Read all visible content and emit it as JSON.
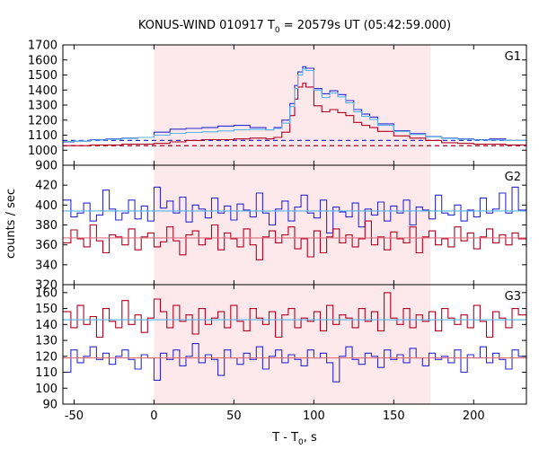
{
  "title": {
    "prefix": "KONUS-WIND 010917 T",
    "sub": "0",
    "suffix": " = 20579s UT (05:42:59.000)"
  },
  "xlabel": {
    "prefix": "T - T",
    "sub": "0",
    "suffix": ", s"
  },
  "ylabel": "counts / sec",
  "chart_data": {
    "type": "line",
    "style": "step",
    "xlim": [
      -57,
      233
    ],
    "xticks": [
      -50,
      0,
      50,
      100,
      150,
      200
    ],
    "shaded_interval": [
      0,
      173
    ],
    "colors": {
      "blue": "#2b2bd4",
      "red": "#b00020",
      "cyan": "#5ab4e6",
      "pink": "#e07080",
      "shade": "#fde8ec"
    },
    "panels": [
      {
        "name": "G1",
        "ylim": [
          900,
          1700
        ],
        "yticks": [
          900,
          1000,
          1100,
          1200,
          1300,
          1400,
          1500,
          1600,
          1700
        ],
        "background_levels": [
          1065,
          1030
        ],
        "series": [
          {
            "color": "blue",
            "x": [
              -57,
              -50,
              -40,
              -30,
              -20,
              -10,
              0,
              10,
              20,
              30,
              40,
              50,
              60,
              70,
              75,
              80,
              85,
              88,
              90,
              93,
              95,
              100,
              105,
              110,
              115,
              120,
              125,
              130,
              135,
              140,
              150,
              160,
              170,
              180,
              190,
              200,
              210,
              220,
              233
            ],
            "y": [
              1055,
              1060,
              1070,
              1075,
              1080,
              1085,
              1120,
              1140,
              1145,
              1150,
              1160,
              1165,
              1150,
              1135,
              1150,
              1200,
              1310,
              1430,
              1520,
              1555,
              1545,
              1410,
              1375,
              1395,
              1370,
              1330,
              1270,
              1240,
              1220,
              1175,
              1130,
              1110,
              1090,
              1080,
              1075,
              1070,
              1075,
              1065,
              1060
            ]
          },
          {
            "color": "red",
            "x": [
              -57,
              -50,
              -40,
              -30,
              -20,
              -10,
              0,
              10,
              20,
              30,
              40,
              50,
              60,
              70,
              75,
              80,
              85,
              88,
              90,
              93,
              95,
              100,
              105,
              110,
              115,
              120,
              125,
              130,
              135,
              140,
              150,
              160,
              170,
              180,
              190,
              200,
              210,
              220,
              233
            ],
            "y": [
              1030,
              1030,
              1035,
              1035,
              1040,
              1040,
              1045,
              1055,
              1065,
              1070,
              1070,
              1075,
              1080,
              1075,
              1085,
              1120,
              1230,
              1340,
              1420,
              1445,
              1420,
              1295,
              1255,
              1270,
              1250,
              1230,
              1185,
              1165,
              1150,
              1125,
              1095,
              1080,
              1065,
              1050,
              1045,
              1040,
              1040,
              1035,
              1035
            ]
          },
          {
            "color": "cyan",
            "x": [
              -57,
              -50,
              -40,
              -30,
              -20,
              -10,
              0,
              10,
              20,
              30,
              40,
              50,
              60,
              70,
              75,
              80,
              85,
              88,
              90,
              93,
              95,
              100,
              105,
              110,
              115,
              120,
              125,
              130,
              135,
              140,
              150,
              160,
              170,
              180,
              190,
              200,
              210,
              220,
              233
            ],
            "y": [
              1058,
              1062,
              1068,
              1072,
              1078,
              1085,
              1100,
              1112,
              1118,
              1122,
              1128,
              1135,
              1138,
              1135,
              1145,
              1180,
              1290,
              1410,
              1500,
              1540,
              1530,
              1400,
              1350,
              1380,
              1355,
              1315,
              1255,
              1225,
              1205,
              1165,
              1125,
              1105,
              1088,
              1078,
              1072,
              1068,
              1068,
              1065,
              1062
            ]
          }
        ]
      },
      {
        "name": "G2",
        "ylim": [
          320,
          440
        ],
        "yticks": [
          320,
          340,
          360,
          380,
          400,
          420
        ],
        "fit_levels": [
          394,
          367
        ],
        "series": [
          {
            "color": "blue",
            "x": [
              -57,
              -52,
              -48,
              -44,
              -40,
              -36,
              -32,
              -28,
              -24,
              -20,
              -16,
              -12,
              -8,
              -4,
              0,
              4,
              8,
              12,
              16,
              20,
              24,
              28,
              32,
              36,
              40,
              44,
              48,
              52,
              56,
              60,
              64,
              68,
              72,
              76,
              80,
              84,
              88,
              92,
              96,
              100,
              104,
              108,
              112,
              116,
              120,
              124,
              128,
              132,
              136,
              140,
              144,
              148,
              152,
              156,
              160,
              164,
              168,
              172,
              176,
              180,
              184,
              188,
              192,
              196,
              200,
              204,
              208,
              212,
              216,
              220,
              224,
              228,
              233
            ],
            "y": [
              405,
              388,
              392,
              402,
              384,
              390,
              415,
              396,
              385,
              392,
              405,
              386,
              399,
              384,
              418,
              397,
              404,
              392,
              408,
              383,
              400,
              396,
              387,
              407,
              392,
              399,
              385,
              401,
              395,
              388,
              412,
              392,
              380,
              396,
              404,
              384,
              398,
              410,
              392,
              387,
              405,
              372,
              398,
              393,
              388,
              402,
              378,
              396,
              390,
              403,
              384,
              399,
              392,
              405,
              380,
              398,
              395,
              386,
              410,
              392,
              390,
              400,
              384,
              395,
              388,
              407,
              392,
              396,
              412,
              392,
              418,
              395,
              398
            ]
          },
          {
            "color": "red",
            "x": [
              -57,
              -52,
              -48,
              -44,
              -40,
              -36,
              -32,
              -28,
              -24,
              -20,
              -16,
              -12,
              -8,
              -4,
              0,
              4,
              8,
              12,
              16,
              20,
              24,
              28,
              32,
              36,
              40,
              44,
              48,
              52,
              56,
              60,
              64,
              68,
              72,
              76,
              80,
              84,
              88,
              92,
              96,
              100,
              104,
              108,
              112,
              116,
              120,
              124,
              128,
              132,
              136,
              140,
              144,
              148,
              152,
              156,
              160,
              164,
              168,
              172,
              176,
              180,
              184,
              188,
              192,
              196,
              200,
              204,
              208,
              212,
              216,
              220,
              224,
              228,
              233
            ],
            "y": [
              362,
              375,
              366,
              358,
              380,
              364,
              352,
              370,
              368,
              360,
              376,
              355,
              368,
              372,
              358,
              363,
              378,
              364,
              350,
              370,
              374,
              360,
              366,
              380,
              355,
              372,
              366,
              358,
              376,
              360,
              345,
              368,
              374,
              362,
              370,
              378,
              356,
              366,
              348,
              374,
              352,
              368,
              376,
              362,
              370,
              358,
              366,
              384,
              360,
              368,
              355,
              373,
              366,
              362,
              378,
              352,
              368,
              374,
              360,
              366,
              358,
              378,
              364,
              372,
              356,
              368,
              376,
              362,
              370,
              360,
              372,
              366,
              358
            ]
          }
        ]
      },
      {
        "name": "G3",
        "ylim": [
          90,
          165
        ],
        "yticks": [
          90,
          100,
          110,
          120,
          130,
          140,
          150,
          160
        ],
        "fit_levels": [
          143,
          119
        ],
        "series": [
          {
            "color": "red",
            "x": [
              -57,
              -52,
              -48,
              -44,
              -40,
              -36,
              -32,
              -28,
              -24,
              -20,
              -16,
              -12,
              -8,
              -4,
              0,
              4,
              8,
              12,
              16,
              20,
              24,
              28,
              32,
              36,
              40,
              44,
              48,
              52,
              56,
              60,
              64,
              68,
              72,
              76,
              80,
              84,
              88,
              92,
              96,
              100,
              104,
              108,
              112,
              116,
              120,
              124,
              128,
              132,
              136,
              140,
              144,
              148,
              152,
              156,
              160,
              164,
              168,
              172,
              176,
              180,
              184,
              188,
              192,
              196,
              200,
              204,
              208,
              212,
              216,
              220,
              224,
              228,
              233
            ],
            "y": [
              148,
              138,
              152,
              140,
              145,
              132,
              150,
              142,
              138,
              155,
              140,
              146,
              135,
              144,
              156,
              148,
              138,
              152,
              142,
              146,
              134,
              150,
              140,
              144,
              148,
              138,
              152,
              142,
              136,
              150,
              144,
              140,
              148,
              132,
              146,
              150,
              138,
              144,
              142,
              148,
              136,
              152,
              140,
              146,
              144,
              138,
              150,
              142,
              148,
              136,
              160,
              144,
              140,
              150,
              138,
              146,
              142,
              148,
              136,
              150,
              144,
              140,
              146,
              138,
              152,
              142,
              132,
              148,
              144,
              138,
              150,
              146,
              140
            ]
          },
          {
            "color": "blue",
            "x": [
              -57,
              -52,
              -48,
              -44,
              -40,
              -36,
              -32,
              -28,
              -24,
              -20,
              -16,
              -12,
              -8,
              -4,
              0,
              4,
              8,
              12,
              16,
              20,
              24,
              28,
              32,
              36,
              40,
              44,
              48,
              52,
              56,
              60,
              64,
              68,
              72,
              76,
              80,
              84,
              88,
              92,
              96,
              100,
              104,
              108,
              112,
              116,
              120,
              124,
              128,
              132,
              136,
              140,
              144,
              148,
              152,
              156,
              160,
              164,
              168,
              172,
              176,
              180,
              184,
              188,
              192,
              196,
              200,
              204,
              208,
              212,
              216,
              220,
              224,
              228,
              233
            ],
            "y": [
              110,
              124,
              116,
              120,
              126,
              118,
              122,
              115,
              120,
              124,
              118,
              112,
              121,
              119,
              105,
              122,
              118,
              124,
              114,
              120,
              128,
              116,
              121,
              118,
              108,
              124,
              119,
              115,
              122,
              118,
              126,
              112,
              120,
              124,
              116,
              121,
              118,
              114,
              124,
              119,
              122,
              116,
              104,
              120,
              126,
              118,
              115,
              122,
              120,
              113,
              124,
              118,
              121,
              116,
              125,
              119,
              114,
              122,
              118,
              120,
              116,
              124,
              110,
              121,
              119,
              126,
              116,
              122,
              118,
              112,
              124,
              120,
              118
            ]
          }
        ]
      }
    ]
  }
}
